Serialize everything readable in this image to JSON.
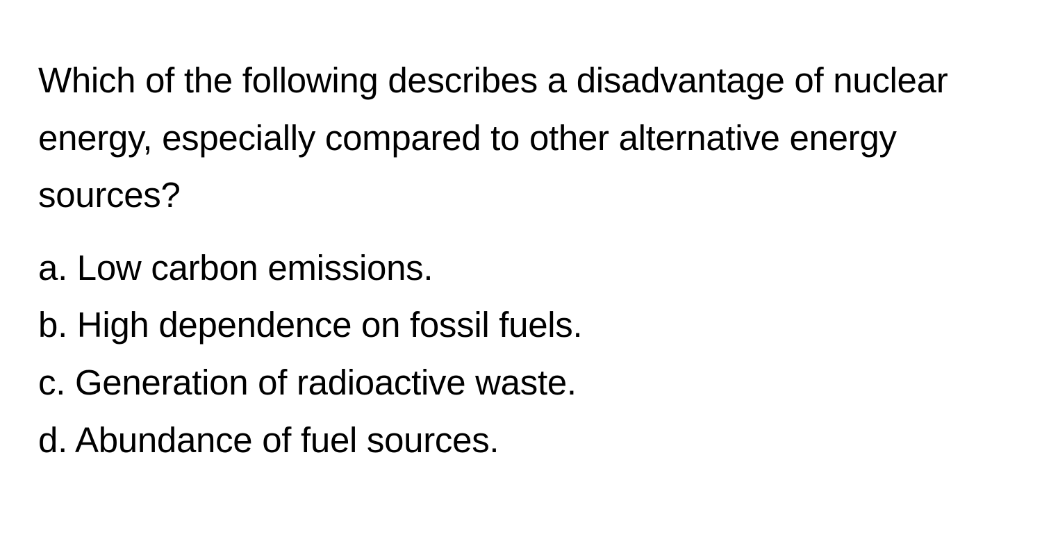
{
  "question": {
    "text": "Which of the following describes a disadvantage of nuclear energy, especially compared to other alternative energy sources?",
    "options": [
      {
        "label": "a. Low carbon emissions."
      },
      {
        "label": "b. High dependence on fossil fuels."
      },
      {
        "label": "c. Generation of radioactive waste."
      },
      {
        "label": "d. Abundance of fuel sources."
      }
    ]
  },
  "styling": {
    "background_color": "#ffffff",
    "text_color": "#000000",
    "font_size_pt": 38,
    "font_weight": 400,
    "line_height": 1.62,
    "font_family": "-apple-system, BlinkMacSystemFont, Segoe UI, Helvetica, Arial, sans-serif"
  }
}
